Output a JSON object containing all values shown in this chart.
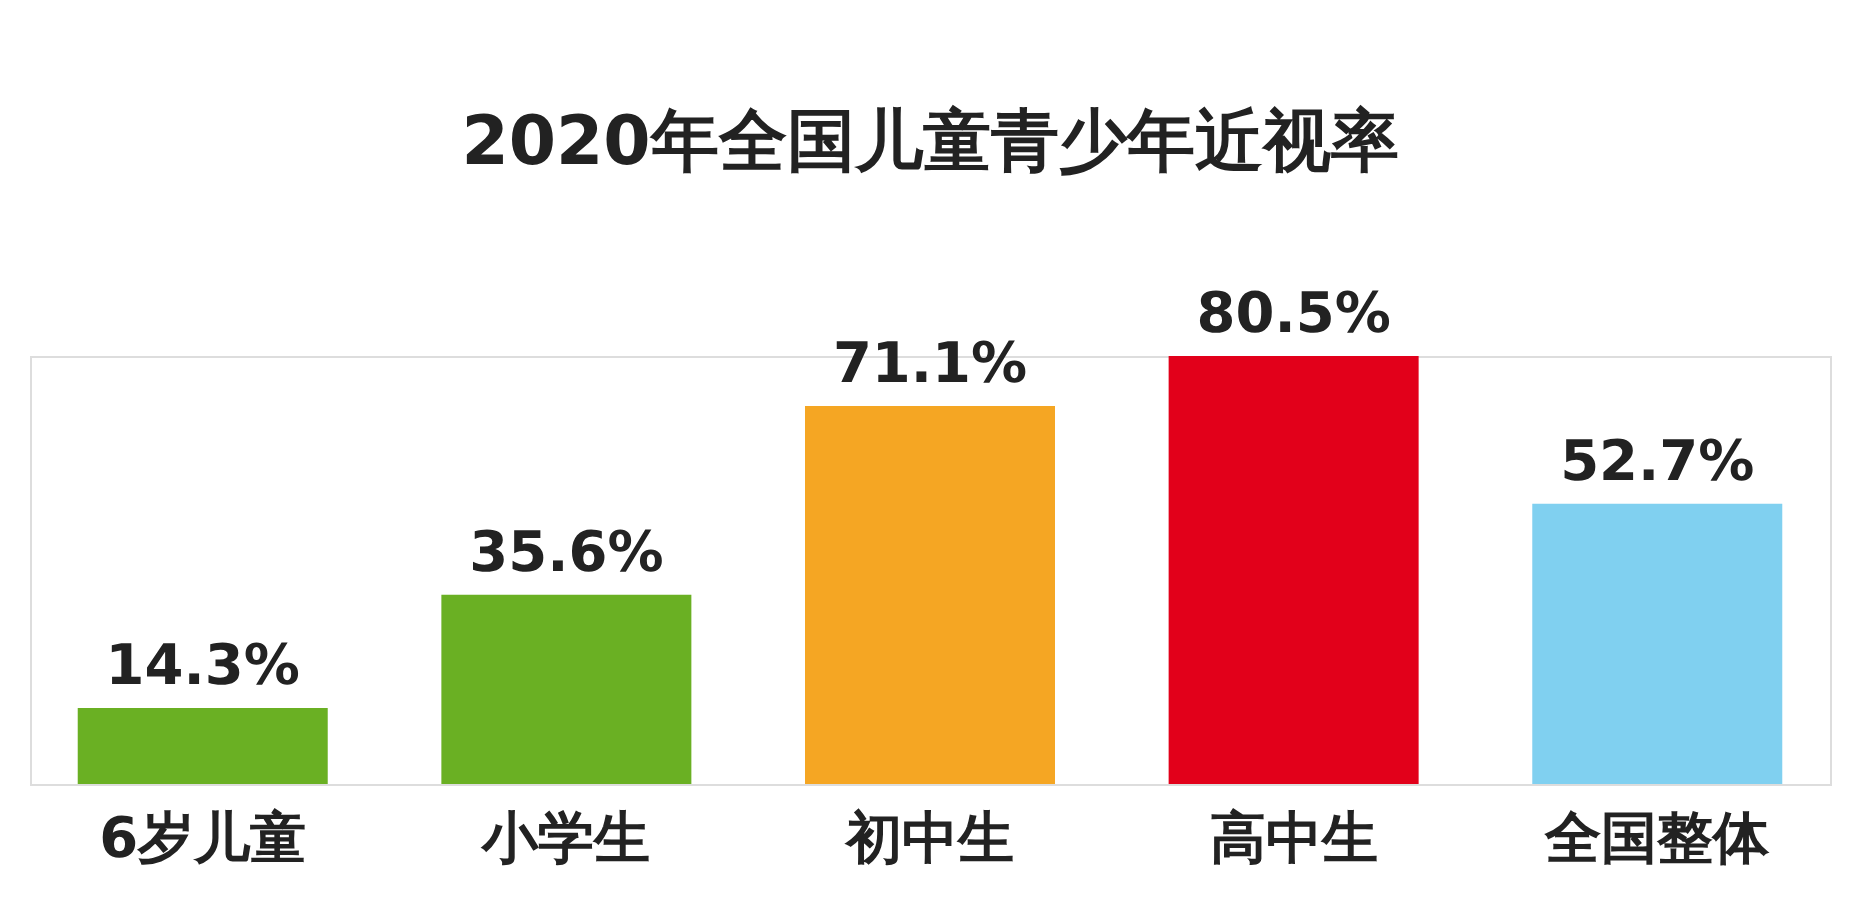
{
  "chart_data": {
    "type": "bar",
    "title": "2020年全国儿童青少年近视率",
    "categories": [
      "6岁儿童",
      "小学生",
      "初中生",
      "高中生",
      "全国整体"
    ],
    "values": [
      14.3,
      35.6,
      71.1,
      80.5,
      52.7
    ],
    "colors": [
      "#6ab023",
      "#6ab023",
      "#f5a623",
      "#e2001a",
      "#80d0f0"
    ],
    "value_labels": [
      "14.3%",
      "35.6%",
      "71.1%",
      "80.5%",
      "52.7%"
    ]
  }
}
